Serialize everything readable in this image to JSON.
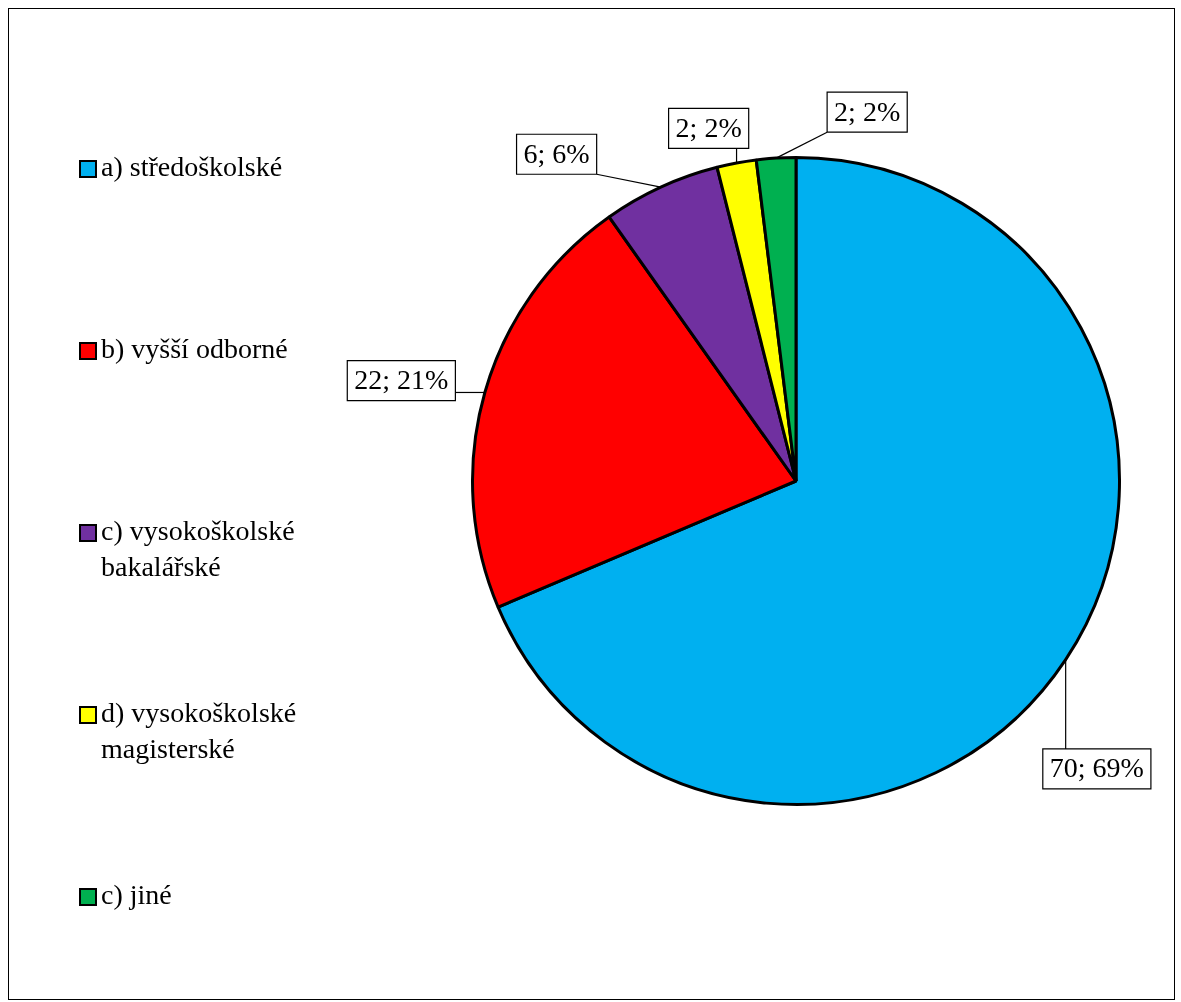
{
  "chart_data": {
    "type": "pie",
    "categories": [
      "a) středoškolské",
      "b) vyšší odborné",
      "c) vysokoškolské bakalářské",
      "d) vysokoškolské magisterské",
      "c) jiné"
    ],
    "values": [
      70,
      22,
      6,
      2,
      2
    ],
    "colors": [
      "#00b0f0",
      "#ff0000",
      "#7030a0",
      "#ffff00",
      "#00b050"
    ],
    "value_labels": [
      "70; 69%",
      "22; 21%",
      "6; 6%",
      "2; 2%",
      "2; 2%"
    ],
    "legend": "left"
  }
}
